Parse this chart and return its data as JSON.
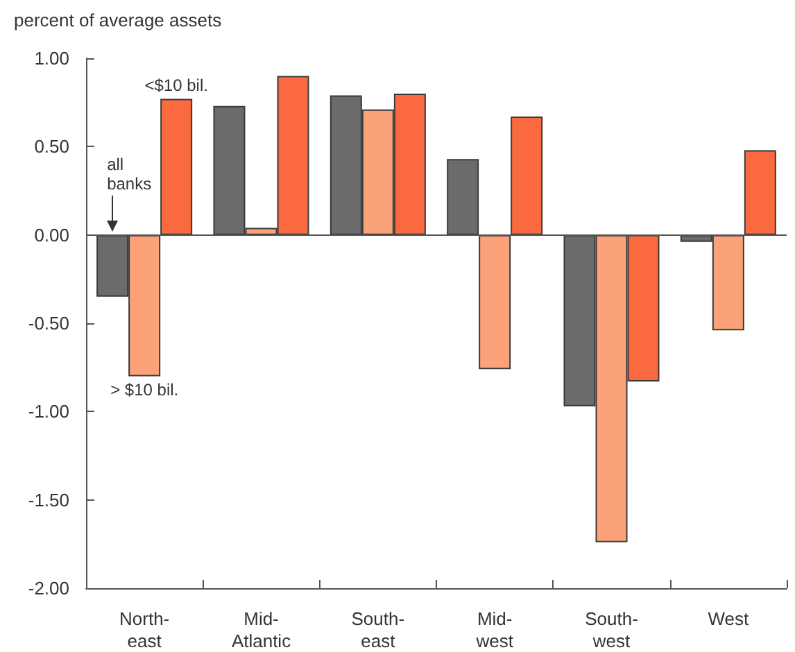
{
  "chart_data": {
    "type": "bar",
    "ylabel": "percent of average assets",
    "categories": [
      "North-\neast",
      "Mid-\nAtlantic",
      "South-\neast",
      "Mid-\nwest",
      "South-\nwest",
      "West"
    ],
    "series": [
      {
        "name": "all banks",
        "color": "#6b6b6b",
        "values": [
          -0.35,
          0.73,
          0.79,
          0.43,
          -0.97,
          -0.04
        ]
      },
      {
        "name": "> $10 bil.",
        "color": "#fca27a",
        "values": [
          -0.8,
          0.04,
          0.71,
          -0.76,
          -1.74,
          -0.54
        ]
      },
      {
        "name": "<$10 bil.",
        "color": "#fb6a3f",
        "values": [
          0.77,
          0.9,
          0.8,
          0.67,
          -0.83,
          0.48
        ]
      }
    ],
    "ylim": [
      -2,
      1
    ],
    "yticks": [
      {
        "value": -2,
        "label": "-2.00"
      },
      {
        "value": -1.5,
        "label": "-1.50"
      },
      {
        "value": -1,
        "label": "-1.00"
      },
      {
        "value": -0.5,
        "label": "-0.50"
      },
      {
        "value": 0,
        "label": "0.00"
      },
      {
        "value": 0.5,
        "label": "0.50"
      },
      {
        "value": 1,
        "label": "1.00"
      }
    ],
    "ref_lines": [
      {
        "axis": "y",
        "value": 0,
        "label": null
      }
    ],
    "grid": false,
    "legend": false
  }
}
